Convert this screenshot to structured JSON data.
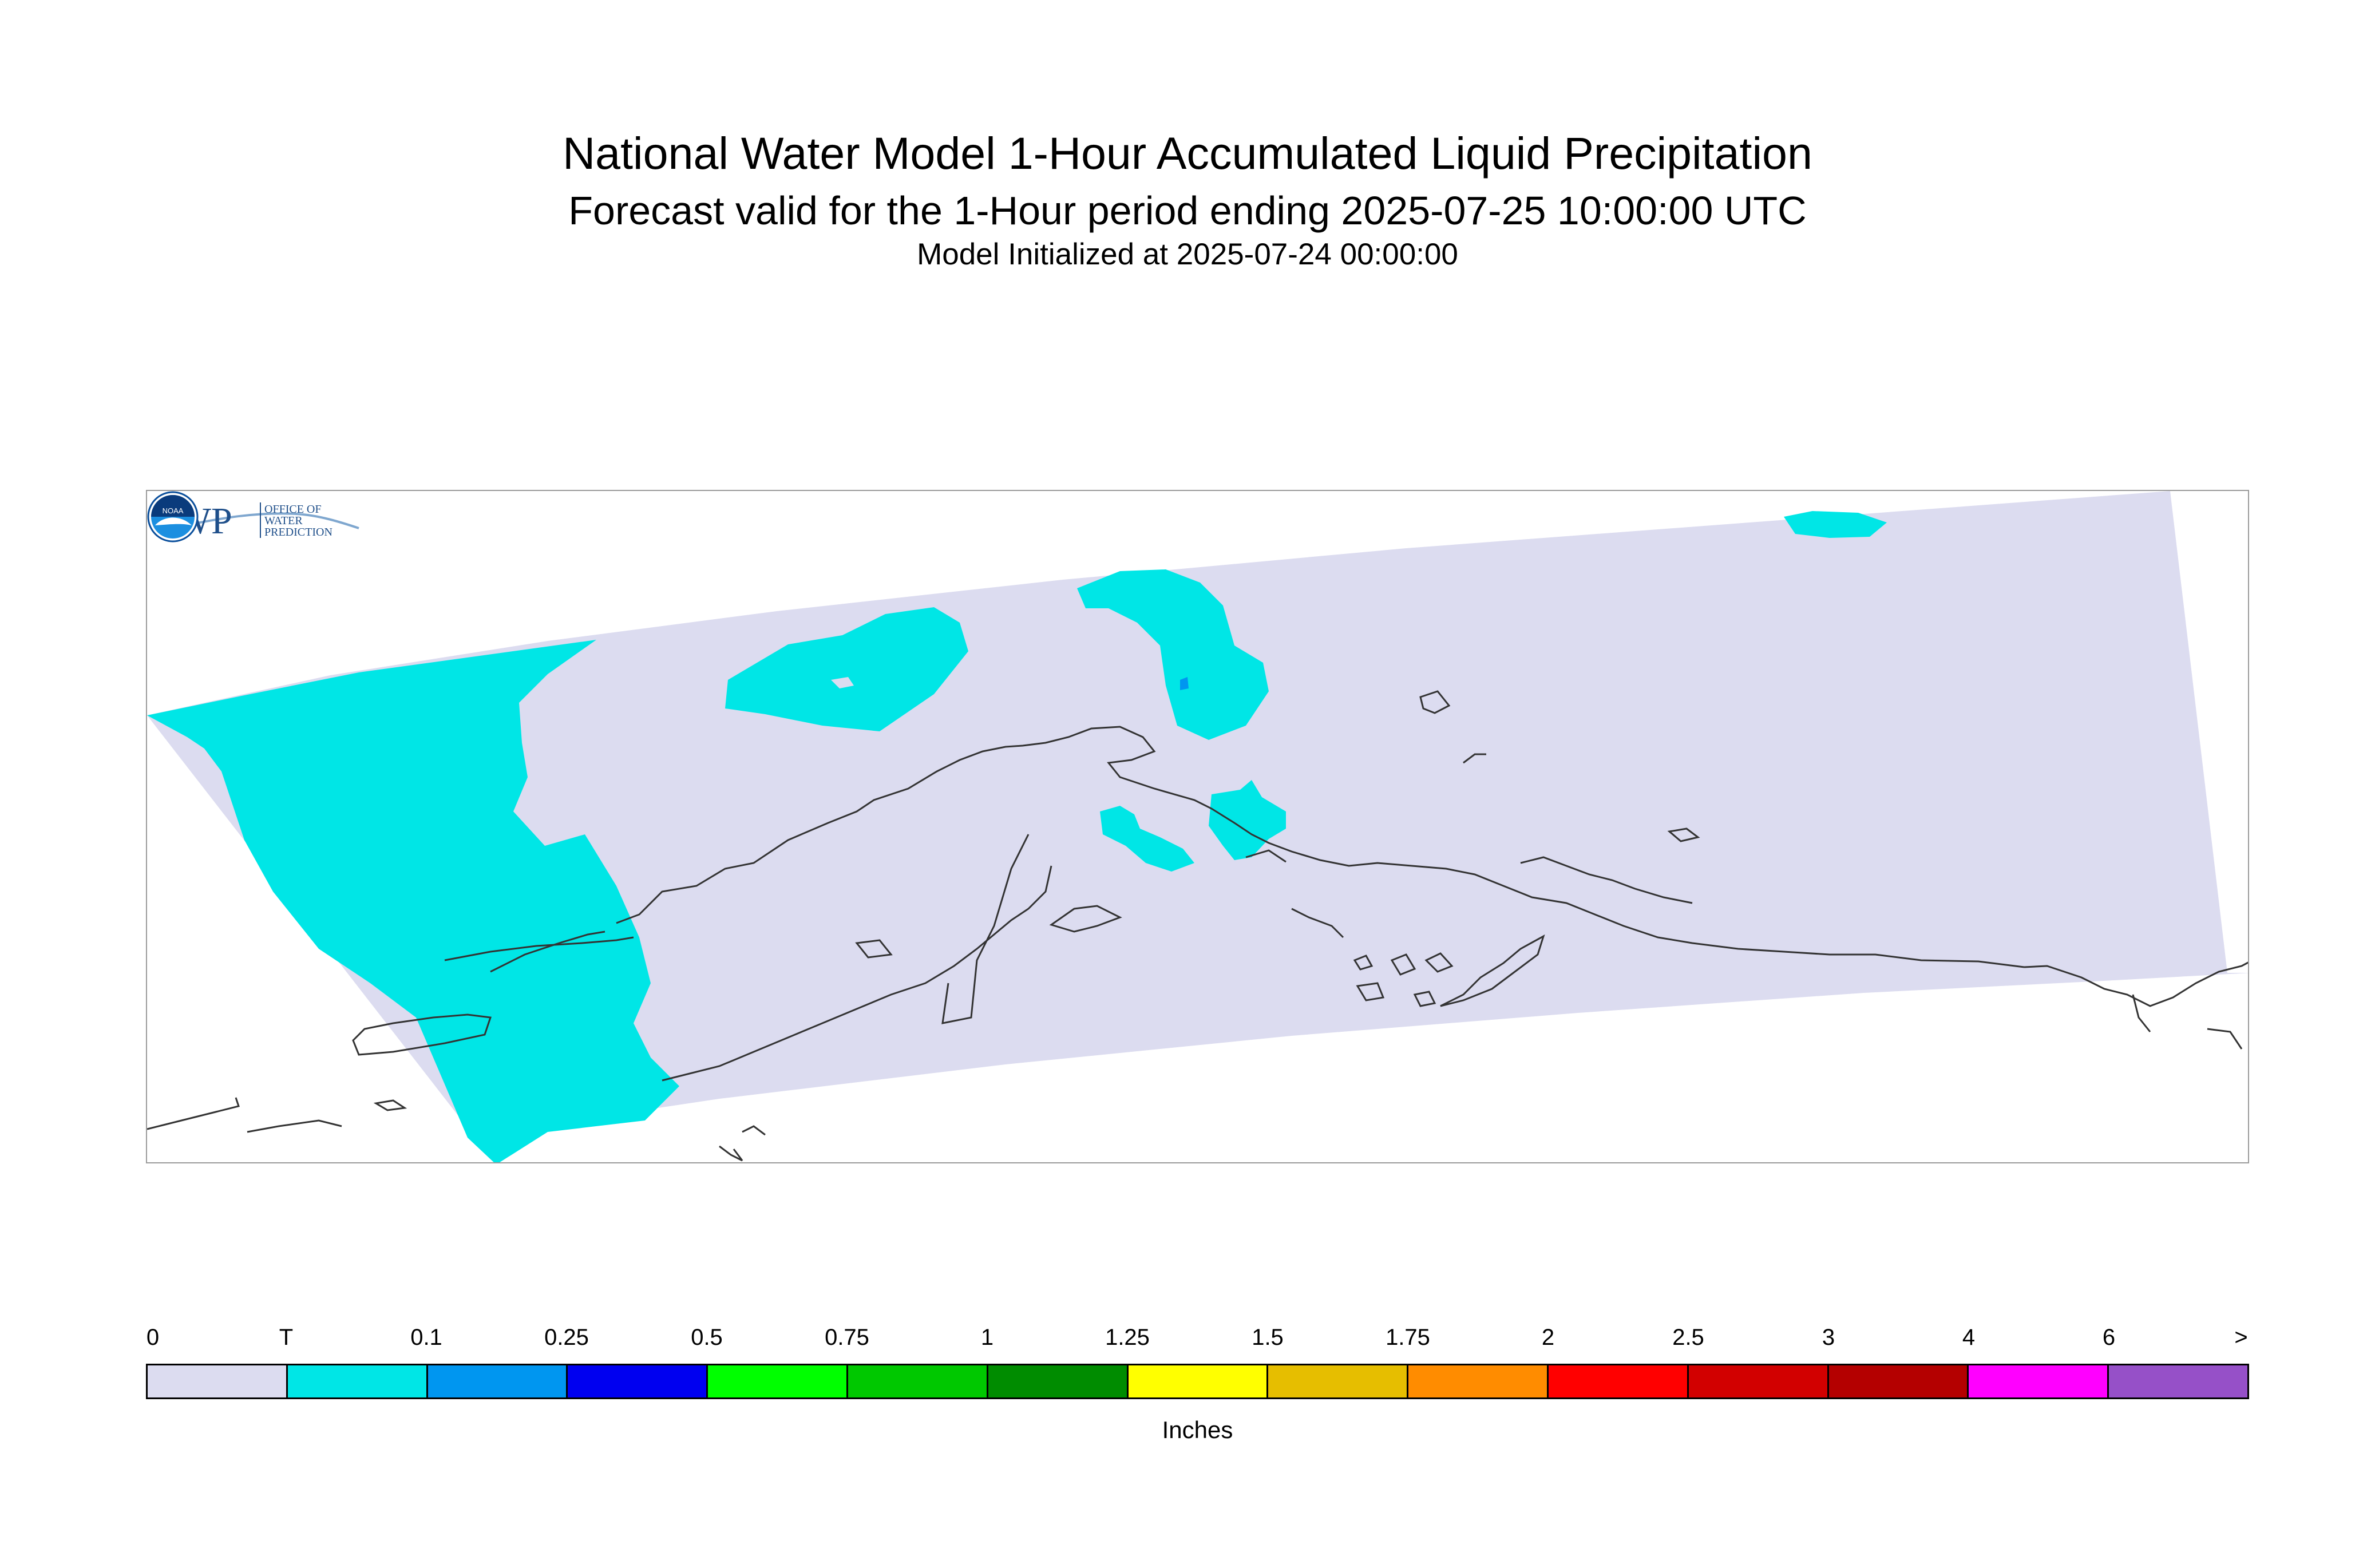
{
  "title": "National Water Model 1-Hour Accumulated Liquid Precipitation",
  "subtitle": "Forecast valid for the 1-Hour period ending 2025-07-25 10:00:00 UTC",
  "init_line": "Model Initialized at 2025-07-24 00:00:00",
  "map": {
    "domain_fill": "#dcdcf0",
    "precip_fill": "#00e6e6",
    "precip_fill_0_1": "#0096f0",
    "coast_color": "#333333"
  },
  "logos": {
    "owp": {
      "wordmark": "OWP",
      "line1": "OFFICE OF",
      "line2": "WATER",
      "line3": "PREDICTION",
      "icon": "owp-logo-icon"
    },
    "noaa": {
      "wordmark": "NOAA",
      "icon": "noaa-logo-icon"
    }
  },
  "legend": {
    "unit": "Inches",
    "ticks": [
      "0",
      "T",
      "0.1",
      "0.25",
      "0.5",
      "0.75",
      "1",
      "1.25",
      "1.5",
      "1.75",
      "2",
      "2.5",
      "3",
      "4",
      "6",
      ">"
    ],
    "colors": [
      "#dcdcf0",
      "#00e6e6",
      "#0096f0",
      "#0000f0",
      "#00ff00",
      "#00c800",
      "#008c00",
      "#ffff00",
      "#e6be00",
      "#ff8c00",
      "#ff0000",
      "#d20000",
      "#b40000",
      "#ff00ff",
      "#9650c8"
    ]
  }
}
